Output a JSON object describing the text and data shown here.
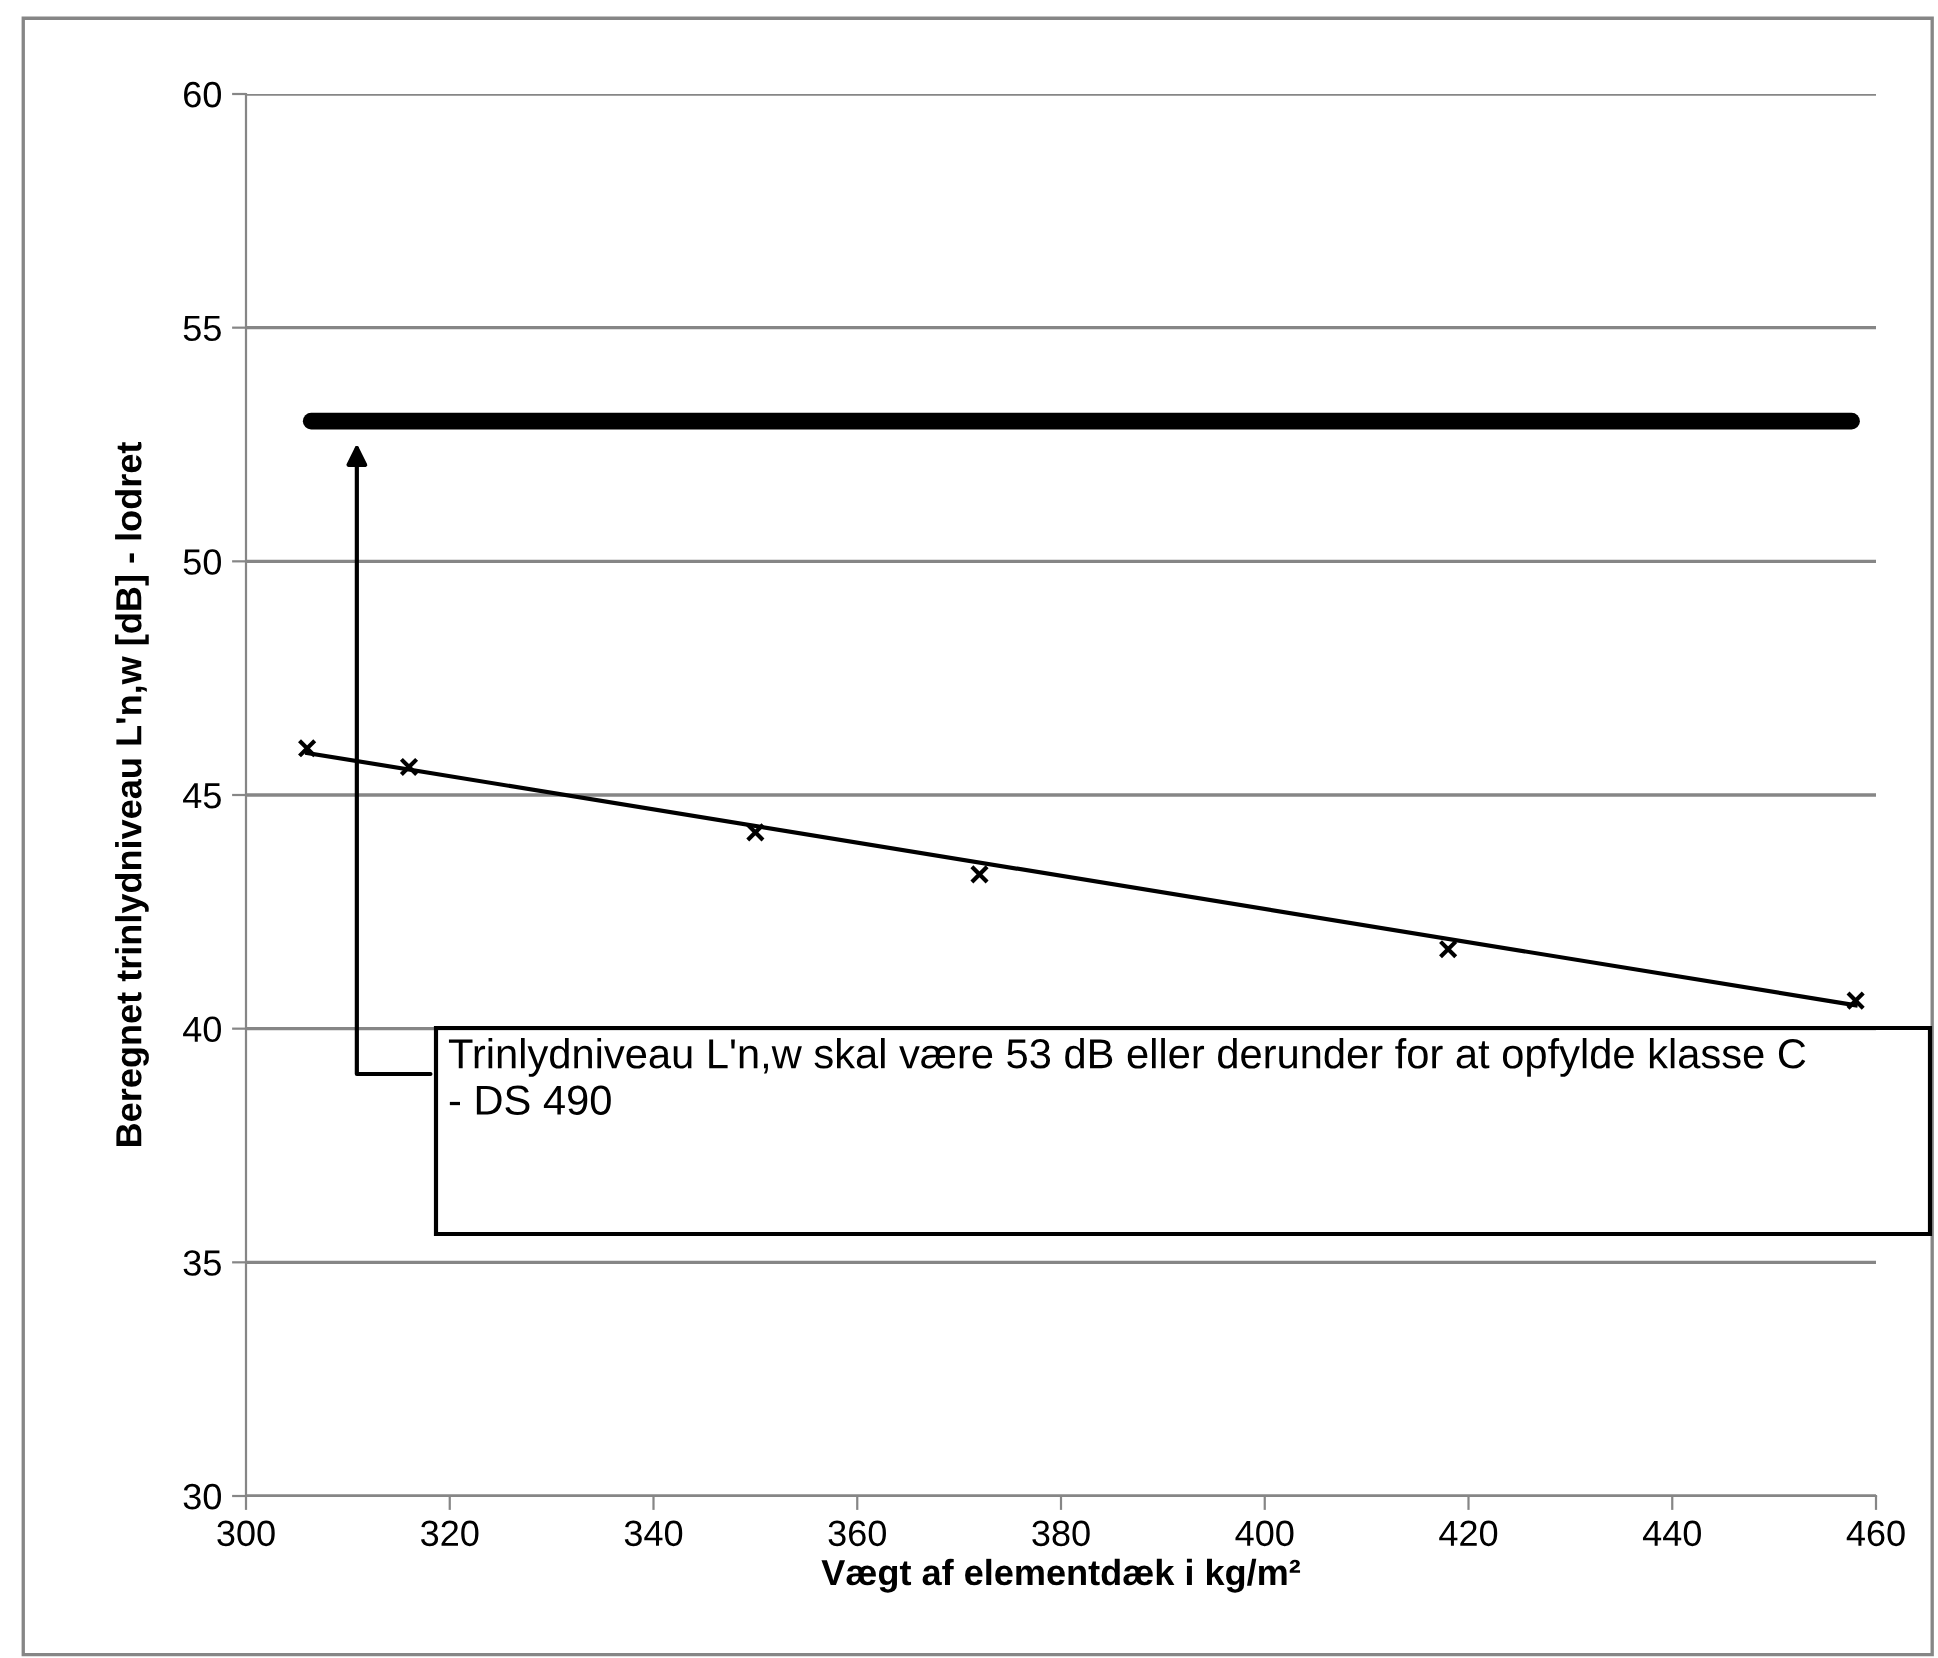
{
  "chart_data": {
    "type": "scatter",
    "xlabel": "Vægt af elementdæk i kg/m²",
    "ylabel": "Beregnet trinlydniveau L'n,w [dB] - lodret",
    "x": [
      306,
      316,
      350,
      372,
      418,
      458
    ],
    "series": [
      {
        "color": "#000000",
        "marker": "cross",
        "values": [
          46.0,
          45.6,
          44.2,
          43.3,
          41.7,
          40.6
        ]
      },
      {
        "type": "line",
        "color": "#000000",
        "marker": "none",
        "line_style": "solid",
        "x": [
          306,
          458
        ],
        "values": [
          45.9,
          40.5
        ]
      }
    ],
    "xlim": [
      300,
      460
    ],
    "xticks": [
      300,
      320,
      340,
      360,
      380,
      400,
      420,
      440,
      460
    ],
    "ylim": [
      30,
      60
    ],
    "yticks": [
      30,
      35,
      40,
      45,
      50,
      55,
      60
    ],
    "grid": "y",
    "legend": false,
    "ref_lines": [
      {
        "axis": "y",
        "value": 53,
        "color": "#000000",
        "line_style": "solid"
      }
    ],
    "annotations": [
      "Trinlydniveau L'n,w skal være 53 dB eller derunder for at opfylde klasse C - DS 490"
    ]
  }
}
